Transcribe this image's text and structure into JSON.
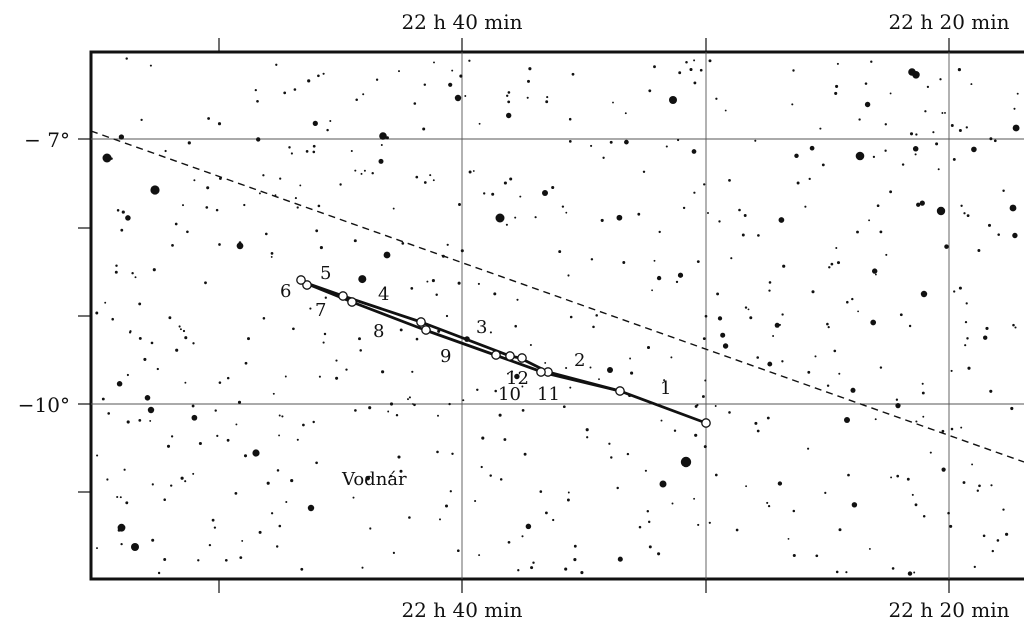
{
  "ra_labels_top": [
    "22 h  40 min",
    "22 h  20 min"
  ],
  "ra_labels_bottom": [
    "22 h  40 min",
    "22 h  20 min"
  ],
  "dec_labels": [
    "− 7°",
    "−10°"
  ],
  "constellation_label": "Vodnár",
  "track_labels": [
    "1",
    "2",
    "3",
    "4",
    "5",
    "6",
    "7",
    "8",
    "9",
    "10",
    "11",
    "12"
  ],
  "colors": {
    "ink": "#111111",
    "background": "#ffffff"
  }
}
